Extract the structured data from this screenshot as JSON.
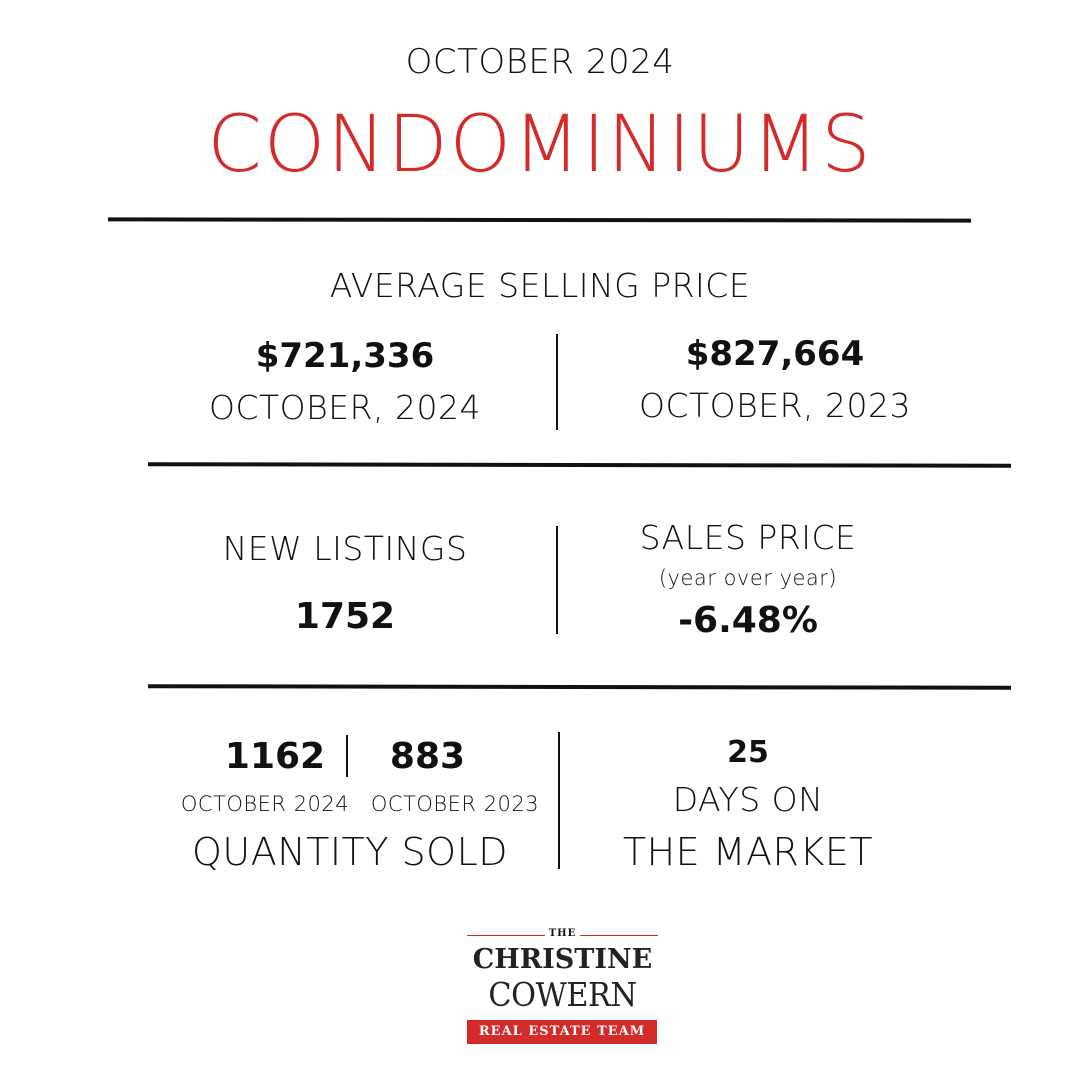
{
  "header": {
    "month_year": "OCTOBER 2024",
    "title": "CONDOMINIUMS"
  },
  "average_selling_price": {
    "heading": "AVERAGE SELLING PRICE",
    "current": {
      "value": "$721,336",
      "label": "OCTOBER, 2024"
    },
    "previous": {
      "value": "$827,664",
      "label": "OCTOBER, 2023"
    }
  },
  "new_listings": {
    "heading": "NEW LISTINGS",
    "value": "1752"
  },
  "sales_price": {
    "heading": "SALES PRICE",
    "subheading": "(year over year)",
    "value": "-6.48%"
  },
  "quantity_sold": {
    "current": {
      "value": "1162",
      "label": "OCTOBER 2024"
    },
    "previous": {
      "value": "883",
      "label": "OCTOBER 2023"
    },
    "heading": "QUANTITY SOLD"
  },
  "days_on_market": {
    "value": "25",
    "label_line1": "DAYS ON",
    "label_line2": "THE MARKET"
  },
  "logo": {
    "the": "THE",
    "line1": "CHRISTINE",
    "line2": "COWERN",
    "banner": "REAL ESTATE TEAM"
  },
  "colors": {
    "accent": "#d42a2a",
    "text": "#111111",
    "background": "#ffffff"
  }
}
